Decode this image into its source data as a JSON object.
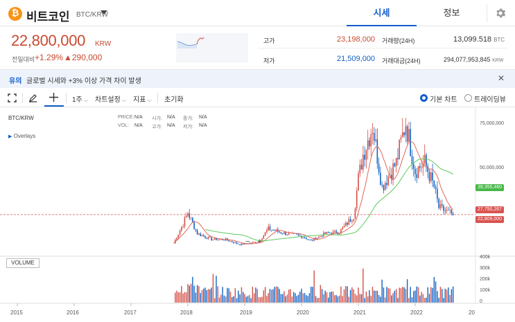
{
  "header": {
    "coin_symbol": "₿",
    "coin_name": "비트코인",
    "pair": "BTC/KRW",
    "tabs": [
      {
        "label": "시세",
        "active": true
      },
      {
        "label": "정보",
        "active": false
      }
    ],
    "settings_icon": "gear-icon"
  },
  "price": {
    "current": "22,800,000",
    "unit": "KRW",
    "change_label": "전일대비",
    "change_pct": "+1.29%",
    "change_amt": "▲290,000",
    "high_label": "고가",
    "high": "23,198,000",
    "low_label": "저가",
    "low": "21,509,000",
    "volume_label": "거래량(24H)",
    "volume": "13,099.518",
    "volume_unit": "BTC",
    "amount_label": "거래대금(24H)",
    "amount": "294,077,953,845",
    "amount_unit": "KRW"
  },
  "notice": {
    "tag": "유의",
    "text": "글로벌 시세와 +3% 이상 가격 차이 발생",
    "close_icon": "close-icon"
  },
  "toolbar": {
    "interval": "1주",
    "chart_settings": "차트설정",
    "indicators": "지표",
    "reset": "초기화",
    "basic_chart": "기본 차트",
    "tradingview": "트레이딩뷰"
  },
  "chart": {
    "pair": "BTC/KRW",
    "ohlc": {
      "price_label": "PRICE:",
      "price": "N/A",
      "open_label": "시가:",
      "open": "N/A",
      "close_label": "종가:",
      "close": "N/A",
      "vol_label": "VOL:",
      "vol": "N/A",
      "high_label": "고가:",
      "high": "N/A",
      "low_label": "저가:",
      "low": "N/A"
    },
    "overlays": "Overlays",
    "y_ticks": [
      "75,000,000",
      "50,000,000"
    ],
    "tags": {
      "ma_long": "39,355,460",
      "ma_short": "27,750,267",
      "current": "22,809,000"
    },
    "volume_label": "VOLUME",
    "vol_ticks": [
      "400k",
      "300k",
      "200k",
      "100k",
      "0"
    ],
    "x_ticks": [
      "2015",
      "2016",
      "2017",
      "2018",
      "2019",
      "2020",
      "2021",
      "2022",
      "20"
    ],
    "zoom_minus": "−",
    "zoom_plus": "+",
    "colors": {
      "up": "#d24f45",
      "down": "#1261c4",
      "ma_short": "#e0685a",
      "ma_long": "#5cc95c",
      "current_tag": "#d9534f",
      "ma_long_tag": "#47b847"
    }
  },
  "chart_data": {
    "type": "line",
    "x": [
      "2017-10",
      "2017-12",
      "2018-01",
      "2018-03",
      "2018-06",
      "2018-09",
      "2018-12",
      "2019-04",
      "2019-06",
      "2019-09",
      "2020-01",
      "2020-03",
      "2020-06",
      "2020-09",
      "2020-12",
      "2021-01",
      "2021-02",
      "2021-04",
      "2021-06",
      "2021-09",
      "2021-11",
      "2022-01",
      "2022-03",
      "2022-05",
      "2022-06",
      "2022-09"
    ],
    "series": [
      {
        "values": [
          5000000,
          17000000,
          24000000,
          11000000,
          7500000,
          7300000,
          4200000,
          6000000,
          14000000,
          11500000,
          9500000,
          6500000,
          11000000,
          12000000,
          22000000,
          45000000,
          60000000,
          78000000,
          40000000,
          55000000,
          80000000,
          50000000,
          55000000,
          40000000,
          27000000,
          22800000
        ]
      }
    ],
    "ylim": [
      0,
      85000000
    ],
    "vol_ylim": [
      0,
      400000
    ]
  }
}
